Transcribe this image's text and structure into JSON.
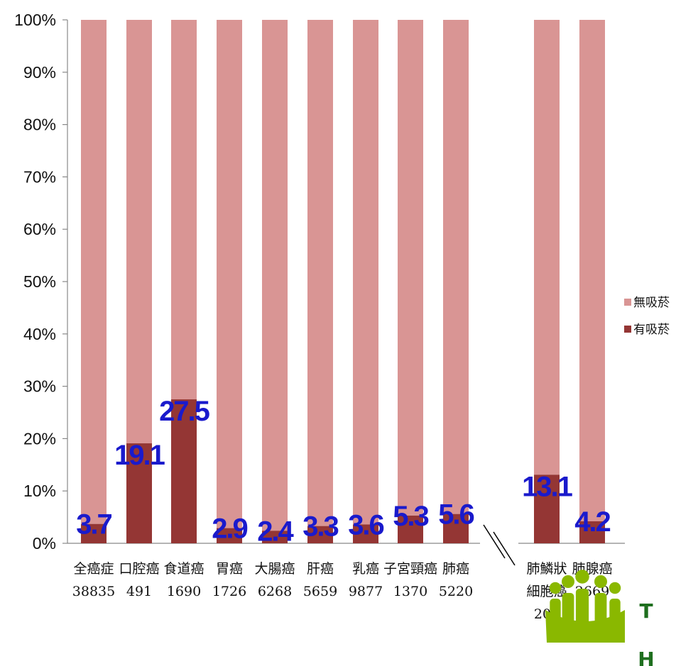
{
  "chart_data": {
    "type": "bar",
    "stacked": true,
    "categories": [
      [
        "全癌症",
        "38835"
      ],
      [
        "口腔癌",
        "491"
      ],
      [
        "食道癌",
        "1690"
      ],
      [
        "胃癌",
        "1726"
      ],
      [
        "大腸癌",
        "6268"
      ],
      [
        "肝癌",
        "5659"
      ],
      [
        "乳癌",
        "9877"
      ],
      [
        "子宮頸癌",
        "1370"
      ],
      [
        "肺癌",
        "5220"
      ],
      [
        "肺鱗狀",
        "細胞癌",
        "206"
      ],
      [
        "肺腺癌",
        "2669"
      ]
    ],
    "series": [
      {
        "name": "有吸菸",
        "color": "#943634",
        "values": [
          3.7,
          19.1,
          27.5,
          2.9,
          2.4,
          3.3,
          3.6,
          5.3,
          5.6,
          13.1,
          4.2
        ]
      },
      {
        "name": "無吸菸",
        "color": "#d99594",
        "values": [
          96.3,
          80.9,
          72.5,
          97.1,
          97.6,
          96.7,
          96.4,
          94.7,
          94.4,
          86.9,
          95.8
        ]
      }
    ],
    "data_labels": [
      "3.7",
      "19.1",
      "27.5",
      "2.9",
      "2.4",
      "3.3",
      "3.6",
      "5.3",
      "5.6",
      "13.1",
      "4.2"
    ],
    "y_ticks": [
      "0%",
      "10%",
      "20%",
      "30%",
      "40%",
      "50%",
      "60%",
      "70%",
      "80%",
      "90%",
      "100%"
    ],
    "ylim": [
      0,
      100
    ],
    "axis_break": "between 肺癌 and 肺鱗狀細胞癌",
    "legend": {
      "placement": "right",
      "order": [
        "無吸菸",
        "有吸菸"
      ]
    },
    "grid": false
  },
  "logo": {
    "letters": [
      "T",
      "H"
    ],
    "color": "#8ab800"
  }
}
